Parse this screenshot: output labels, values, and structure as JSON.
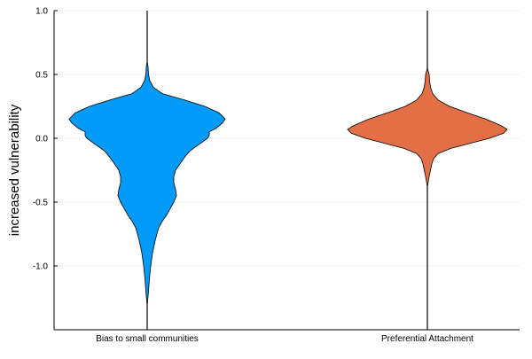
{
  "chart_data": {
    "type": "violin",
    "title": "",
    "xlabel": "",
    "ylabel": "increased vulnerability",
    "ylim": [
      -1.5,
      1.0
    ],
    "yticks": [
      "1.0",
      "0.5",
      "0.0",
      "-0.5",
      "-1.0"
    ],
    "ytick_values": [
      1.0,
      0.5,
      0.0,
      -0.5,
      -1.0
    ],
    "grid": true,
    "legend": "none",
    "categories": [
      "Bias to small communities",
      "Preferential Attachment"
    ],
    "series": [
      {
        "color": "#009AF9",
        "whisker_range": [
          -1.5,
          1.0
        ],
        "density_range": [
          -1.31,
          0.6
        ],
        "density_profile": [
          [
            0.6,
            0.0
          ],
          [
            0.56,
            0.01
          ],
          [
            0.5,
            0.015
          ],
          [
            0.45,
            0.03
          ],
          [
            0.4,
            0.07
          ],
          [
            0.35,
            0.17
          ],
          [
            0.3,
            0.42
          ],
          [
            0.25,
            0.65
          ],
          [
            0.2,
            0.81
          ],
          [
            0.15,
            0.88
          ],
          [
            0.12,
            0.85
          ],
          [
            0.08,
            0.78
          ],
          [
            0.05,
            0.7
          ],
          [
            0.02,
            0.7
          ],
          [
            0.0,
            0.68
          ],
          [
            -0.05,
            0.58
          ],
          [
            -0.1,
            0.48
          ],
          [
            -0.15,
            0.42
          ],
          [
            -0.2,
            0.37
          ],
          [
            -0.25,
            0.32
          ],
          [
            -0.3,
            0.3
          ],
          [
            -0.35,
            0.3
          ],
          [
            -0.4,
            0.32
          ],
          [
            -0.45,
            0.33
          ],
          [
            -0.5,
            0.3
          ],
          [
            -0.55,
            0.26
          ],
          [
            -0.6,
            0.22
          ],
          [
            -0.65,
            0.17
          ],
          [
            -0.7,
            0.13
          ],
          [
            -0.8,
            0.09
          ],
          [
            -0.9,
            0.06
          ],
          [
            -1.0,
            0.04
          ],
          [
            -1.1,
            0.025
          ],
          [
            -1.2,
            0.015
          ],
          [
            -1.31,
            0.0
          ]
        ]
      },
      {
        "color": "#E26F46",
        "whisker_range": [
          -1.5,
          1.0
        ],
        "density_range": [
          -0.38,
          0.55
        ],
        "density_profile": [
          [
            0.55,
            0.0
          ],
          [
            0.5,
            0.02
          ],
          [
            0.45,
            0.025
          ],
          [
            0.4,
            0.035
          ],
          [
            0.35,
            0.06
          ],
          [
            0.3,
            0.12
          ],
          [
            0.25,
            0.25
          ],
          [
            0.2,
            0.45
          ],
          [
            0.15,
            0.66
          ],
          [
            0.1,
            0.83
          ],
          [
            0.07,
            0.9
          ],
          [
            0.04,
            0.86
          ],
          [
            0.0,
            0.7
          ],
          [
            -0.04,
            0.48
          ],
          [
            -0.08,
            0.26
          ],
          [
            -0.12,
            0.12
          ],
          [
            -0.16,
            0.07
          ],
          [
            -0.2,
            0.05
          ],
          [
            -0.25,
            0.035
          ],
          [
            -0.3,
            0.02
          ],
          [
            -0.38,
            0.0
          ]
        ]
      }
    ]
  }
}
